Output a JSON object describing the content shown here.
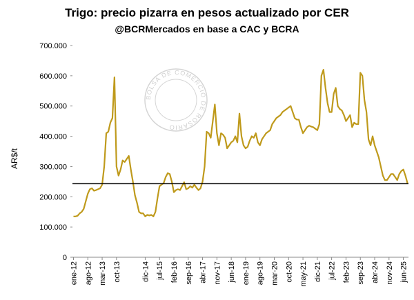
{
  "chart_data": {
    "type": "line",
    "title": "Trigo: precio pizarra en pesos actualizado por CER",
    "subtitle": "@BCRMercados en base a CAC y BCRA",
    "y_label": "AR$/t",
    "watermark": "BOLSA DE COMERCIO DE ROSARIO",
    "categories": [
      "ene-12",
      null,
      null,
      null,
      null,
      null,
      null,
      "ago-12",
      null,
      null,
      null,
      null,
      null,
      null,
      "mar-13",
      null,
      null,
      null,
      null,
      null,
      null,
      "oct-13",
      null,
      null,
      null,
      null,
      null,
      null,
      null,
      null,
      null,
      null,
      null,
      null,
      null,
      "dic-14",
      null,
      null,
      null,
      null,
      null,
      null,
      "jul-15",
      null,
      null,
      null,
      null,
      null,
      null,
      "feb-16",
      null,
      null,
      null,
      null,
      null,
      null,
      "sep-16",
      null,
      null,
      null,
      null,
      null,
      null,
      "abr-17",
      null,
      null,
      null,
      null,
      null,
      null,
      "nov-17",
      null,
      null,
      null,
      null,
      null,
      null,
      "jun-18",
      null,
      null,
      null,
      null,
      null,
      null,
      "ene-19",
      null,
      null,
      null,
      null,
      null,
      null,
      "ago-19",
      null,
      null,
      null,
      null,
      null,
      null,
      "mar-20",
      null,
      null,
      null,
      null,
      null,
      null,
      "oct-20",
      null,
      null,
      null,
      null,
      null,
      null,
      "may-21",
      null,
      null,
      null,
      null,
      null,
      null,
      "dic-21",
      null,
      null,
      null,
      null,
      null,
      null,
      "jul-22",
      null,
      null,
      null,
      null,
      null,
      null,
      "feb-23",
      null,
      null,
      null,
      null,
      null,
      null,
      "sep-23",
      null,
      null,
      null,
      null,
      null,
      null,
      "abr-24",
      null,
      null,
      null,
      null,
      null,
      null,
      "nov-24",
      null,
      null,
      null,
      null,
      null,
      null,
      "jun-25",
      null,
      null
    ],
    "series": [
      {
        "color": "#bf9a1c",
        "values": [
          135000,
          135000,
          137000,
          145000,
          150000,
          160000,
          185000,
          210000,
          225000,
          228000,
          220000,
          222000,
          225000,
          228000,
          240000,
          300000,
          410000,
          415000,
          445000,
          460000,
          595000,
          300000,
          270000,
          290000,
          320000,
          315000,
          325000,
          335000,
          290000,
          250000,
          205000,
          180000,
          150000,
          145000,
          145000,
          135000,
          140000,
          138000,
          140000,
          135000,
          150000,
          195000,
          235000,
          240000,
          245000,
          265000,
          278000,
          275000,
          250000,
          215000,
          222000,
          225000,
          222000,
          235000,
          248000,
          225000,
          228000,
          235000,
          230000,
          240000,
          230000,
          222000,
          228000,
          250000,
          300000,
          415000,
          410000,
          395000,
          450000,
          505000,
          410000,
          370000,
          410000,
          405000,
          395000,
          360000,
          370000,
          380000,
          385000,
          400000,
          380000,
          475000,
          400000,
          370000,
          360000,
          365000,
          385000,
          400000,
          395000,
          410000,
          380000,
          370000,
          390000,
          400000,
          410000,
          415000,
          420000,
          440000,
          450000,
          460000,
          465000,
          470000,
          480000,
          485000,
          490000,
          495000,
          500000,
          480000,
          460000,
          455000,
          455000,
          430000,
          410000,
          420000,
          430000,
          435000,
          432000,
          430000,
          425000,
          420000,
          440000,
          600000,
          620000,
          560000,
          510000,
          480000,
          480000,
          540000,
          560000,
          500000,
          490000,
          485000,
          470000,
          450000,
          460000,
          470000,
          430000,
          445000,
          440000,
          440000,
          610000,
          600000,
          520000,
          480000,
          390000,
          370000,
          400000,
          370000,
          350000,
          330000,
          300000,
          270000,
          255000,
          255000,
          265000,
          275000,
          275000,
          265000,
          255000,
          275000,
          285000,
          290000,
          270000,
          245000
        ]
      }
    ],
    "reference_line": 243000,
    "reference_color": "#000000",
    "ylim": [
      0,
      700000
    ],
    "yticks": [
      0,
      {
        "value": 100000,
        "label": "100.000"
      },
      {
        "value": 200000,
        "label": "200.000"
      },
      {
        "value": 300000,
        "label": "300.000"
      },
      {
        "value": 400000,
        "label": "400.000"
      },
      {
        "value": 500000,
        "label": "500.000"
      },
      {
        "value": 600000,
        "label": "600.000"
      },
      {
        "value": 700000,
        "label": "700.000"
      }
    ],
    "grid": false
  }
}
